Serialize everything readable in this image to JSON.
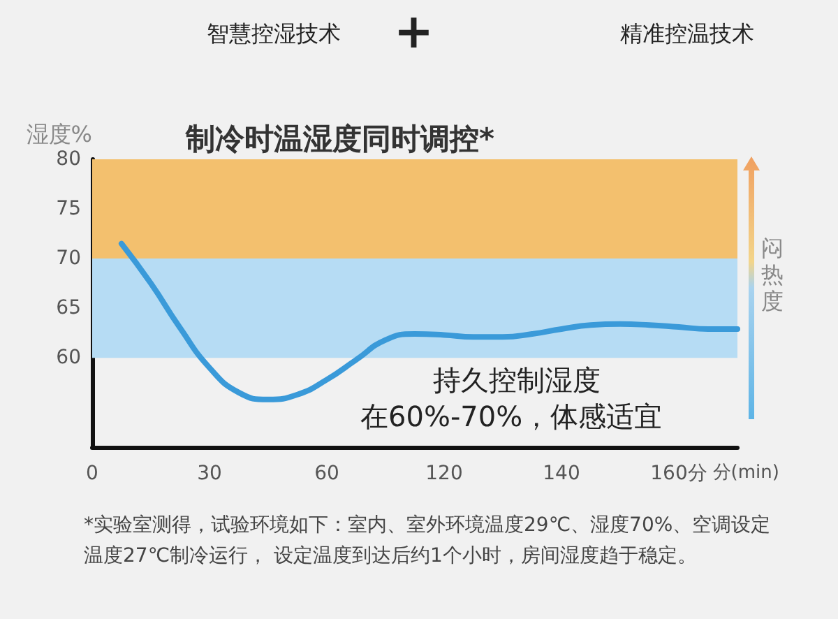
{
  "chart_data": {
    "type": "line",
    "title": "制冷时温湿度同时调控*",
    "ylabel": "湿度%",
    "xlabel": "分(min)",
    "categories": [
      "0",
      null,
      null,
      null,
      "30",
      null,
      null,
      null,
      "60",
      null,
      null,
      null,
      "120",
      null,
      null,
      null,
      "140",
      null,
      null,
      null,
      "160分",
      null,
      null
    ],
    "series": [
      {
        "color": "#3a9ad9",
        "values": [
          null,
          71.5,
          67.5,
          63,
          59,
          56.5,
          55.8,
          56.3,
          57.8,
          59.8,
          61.8,
          62.4,
          62.3,
          62.1,
          62.1,
          62.4,
          62.9,
          63.3,
          63.4,
          63.3,
          63.1,
          62.9,
          62.9
        ]
      }
    ],
    "ylim": [
      51,
      80
    ],
    "yticks": [
      60,
      65,
      70,
      75,
      80
    ],
    "grid": false,
    "marker": "none",
    "line_style": "solid",
    "bands": [
      {
        "axis": "y",
        "from": 70,
        "to": 80,
        "color": "#f3c06e"
      },
      {
        "axis": "y",
        "from": 60,
        "to": 70,
        "color": "#b6dcf4"
      }
    ],
    "annotations": [
      "智慧控湿技术",
      "+",
      "精准控温技术",
      "闷热度",
      "持久控制湿度",
      "在60%-70%，体感适宜",
      "*实验室测得，试验环境如下：室内、室外环境温度29℃、湿度70%、空调设定温度27℃制冷运行， 设定温度到达后约1个小时，房间湿度趋于稳定。"
    ]
  }
}
